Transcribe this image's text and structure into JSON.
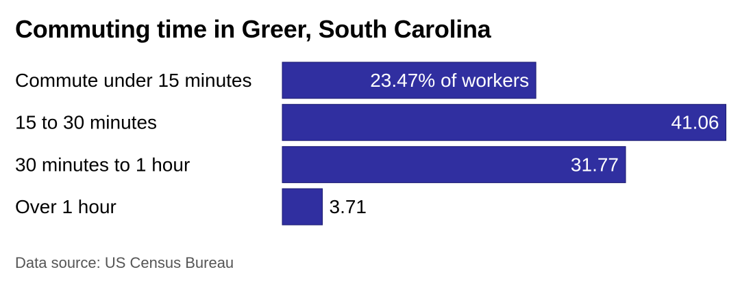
{
  "title": "Commuting time in Greer, South Carolina",
  "source": "Data source: US Census Bureau",
  "colors": {
    "bar": "#302fa0",
    "bar_stroke": "#1a1a6e",
    "label_inside": "#ffffff",
    "label_outside": "#000000",
    "category_text": "#000000"
  },
  "chart_data": {
    "type": "bar",
    "orientation": "horizontal",
    "categories": [
      "Commute under 15 minutes",
      "15 to 30 minutes",
      "30 minutes to 1 hour",
      "Over 1 hour"
    ],
    "values": [
      23.47,
      41.06,
      31.77,
      3.71
    ],
    "value_labels": [
      "23.47% of workers",
      "41.06",
      "31.77",
      "3.71"
    ],
    "unit": "% of workers",
    "grid": false,
    "legend": "none"
  }
}
